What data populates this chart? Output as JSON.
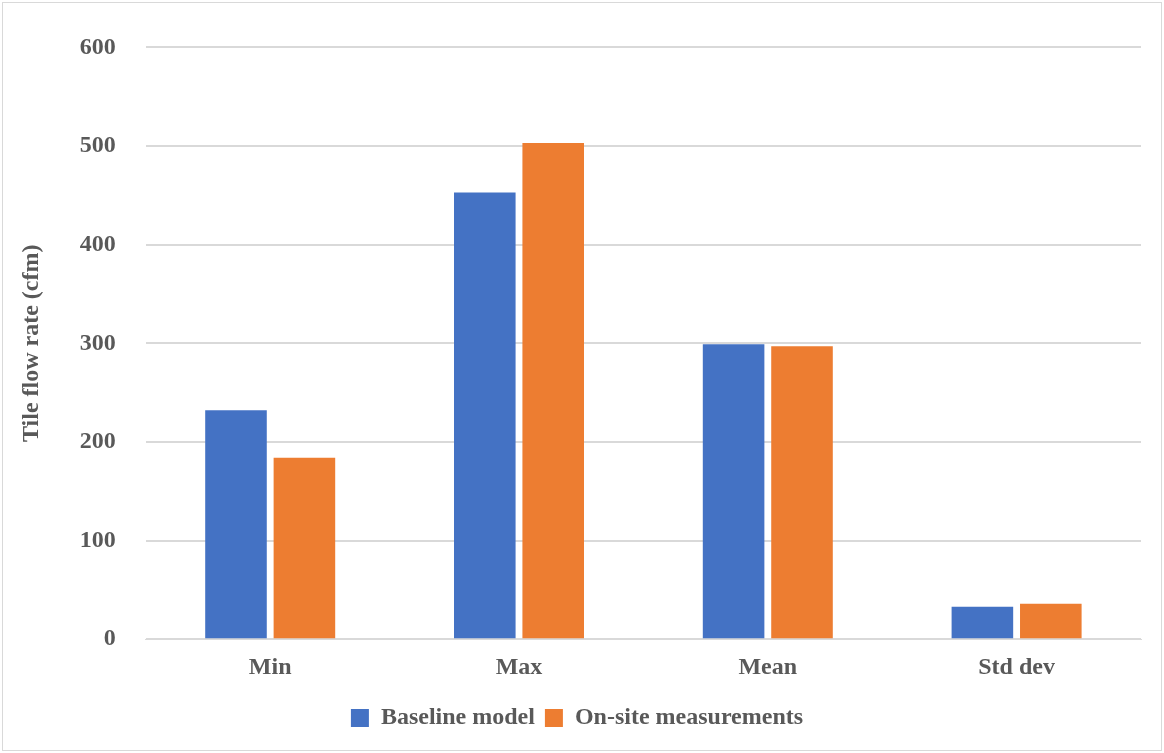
{
  "chart_data": {
    "type": "bar",
    "ylabel": "Tile flow rate (cfm)",
    "categories": [
      "Min",
      "Max",
      "Mean",
      "Std dev"
    ],
    "series": [
      {
        "name": "Baseline model",
        "color": "#4472c4",
        "values": [
          232,
          453,
          299,
          33
        ]
      },
      {
        "name": "On-site measurements",
        "color": "#ed7d31",
        "values": [
          184,
          503,
          297,
          36
        ]
      }
    ],
    "ylim": [
      0,
      600
    ],
    "yticks": [
      0,
      100,
      200,
      300,
      400,
      500,
      600
    ],
    "grid": "y",
    "legend": "bottom"
  }
}
